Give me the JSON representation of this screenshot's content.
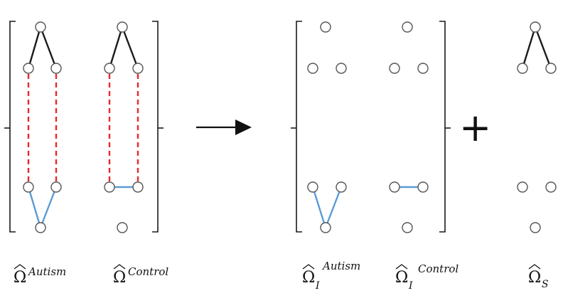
{
  "colors": {
    "shared_edge": "#1a1a1a",
    "specific_edge": "#5b9bd5",
    "differential_edge": "#e8282b",
    "node_fill": "#ffffff",
    "node_stroke": "#555555"
  },
  "operator": "+",
  "labels": {
    "omega_autism": {
      "base": "Ω",
      "sup": "Autism"
    },
    "omega_control": {
      "base": "Ω",
      "sup": "Control"
    },
    "omega_i_autism": {
      "base": "Ω",
      "sub": "I",
      "sup": "Autism"
    },
    "omega_i_control": {
      "base": "Ω",
      "sub": "I",
      "sup": "Control"
    },
    "omega_s": {
      "base": "Ω",
      "sub": "S"
    }
  }
}
